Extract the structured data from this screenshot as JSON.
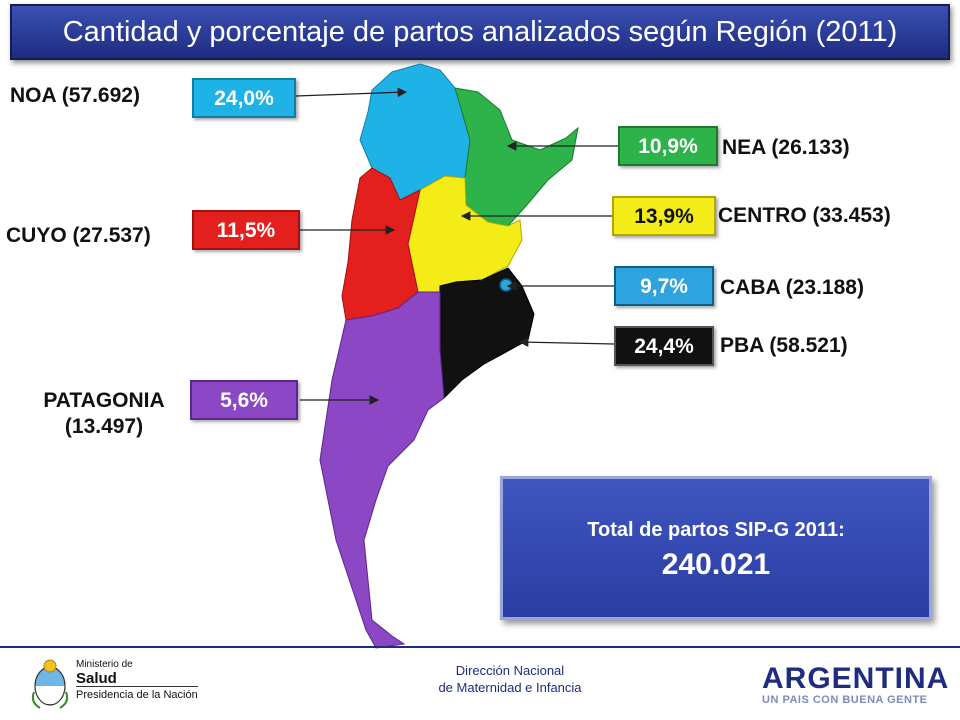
{
  "title": "Cantidad y porcentaje de partos analizados según Región (2011)",
  "regions": {
    "noa": {
      "label": "NOA (57.692)",
      "pct": "24,0%",
      "color": "#1fb2e6"
    },
    "nea": {
      "label": "NEA (26.133)",
      "pct": "10,9%",
      "color": "#2db34a"
    },
    "centro": {
      "label": "CENTRO (33.453)",
      "pct": "13,9%",
      "color": "#f4ec17"
    },
    "caba": {
      "label": "CABA (23.188)",
      "pct": "9,7%",
      "color": "#2ea3dd"
    },
    "pba": {
      "label": "PBA (58.521)",
      "pct": "24,4%",
      "color": "#111111"
    },
    "cuyo": {
      "label": "CUYO (27.537)",
      "pct": "11,5%",
      "color": "#e3201d"
    },
    "patagonia": {
      "label_line1": "PATAGONIA",
      "label_line2": "(13.497)",
      "pct": "5,6%",
      "color": "#8b47c4"
    }
  },
  "total": {
    "label": "Total de partos SIP-G 2011:",
    "value": "240.021"
  },
  "footer": {
    "center_line1": "Dirección Nacional",
    "center_line2": "de Maternidad e Infancia",
    "ministry_line1": "Ministerio de",
    "ministry_line2": "Salud",
    "ministry_line3": "Presidencia de la Nación",
    "argentina_word": "ARGENTINA",
    "argentina_tagline": "UN PAIS CON BUENA GENTE"
  }
}
